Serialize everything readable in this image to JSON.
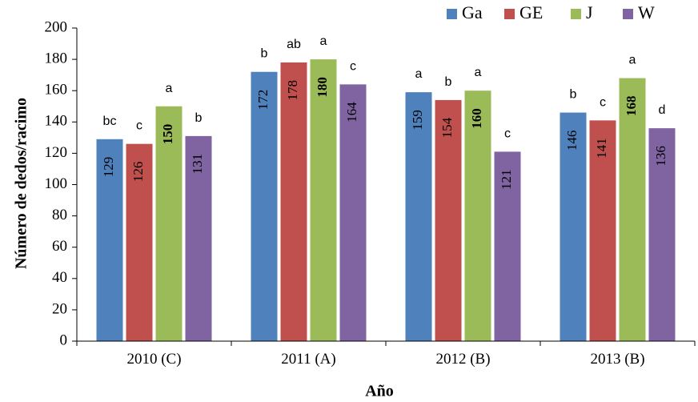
{
  "chart_data": {
    "type": "bar",
    "title": "",
    "xlabel": "Año",
    "ylabel": "Número de dedos/racimo",
    "ylim": [
      0,
      200
    ],
    "yticks": [
      0,
      20,
      40,
      60,
      80,
      100,
      120,
      140,
      160,
      180,
      200
    ],
    "categories": [
      "2010 (C)",
      "2011 (A)",
      "2012 (B)",
      "2013 (B)"
    ],
    "legend_position": "top-right",
    "series": [
      {
        "name": "Ga",
        "color": "#4F81BD",
        "values": [
          129,
          172,
          159,
          146
        ],
        "letters": [
          "bc",
          "b",
          "a",
          "b"
        ],
        "label_bold": [
          false,
          false,
          false,
          false
        ]
      },
      {
        "name": "GE",
        "color": "#C0504D",
        "values": [
          126,
          178,
          154,
          141
        ],
        "letters": [
          "c",
          "ab",
          "b",
          "c"
        ],
        "label_bold": [
          false,
          false,
          false,
          false
        ]
      },
      {
        "name": "J",
        "color": "#9BBB59",
        "values": [
          150,
          180,
          160,
          168
        ],
        "letters": [
          "a",
          "a",
          "a",
          "a"
        ],
        "label_bold": [
          true,
          true,
          true,
          true
        ]
      },
      {
        "name": "W",
        "color": "#8064A2",
        "values": [
          131,
          164,
          121,
          136
        ],
        "letters": [
          "b",
          "c",
          "c",
          "d"
        ],
        "label_bold": [
          false,
          false,
          false,
          false
        ]
      }
    ]
  }
}
